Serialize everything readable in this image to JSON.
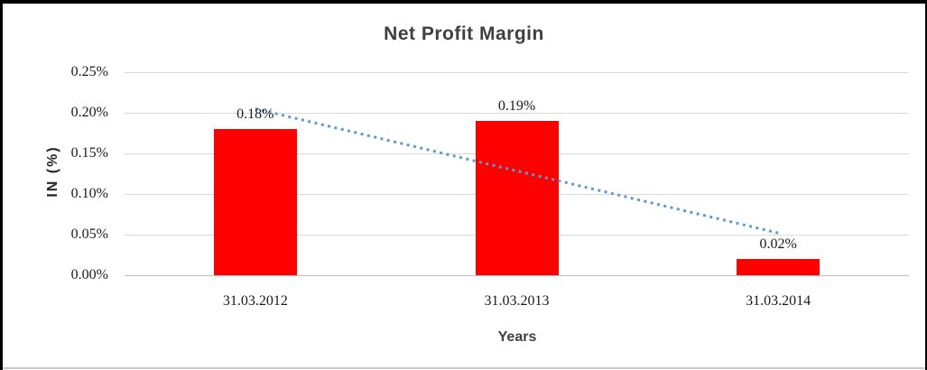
{
  "chart_data": {
    "type": "bar",
    "title": "Net Profit Margin",
    "xlabel": "Years",
    "ylabel": "IN (%)",
    "categories": [
      "31.03.2012",
      "31.03.2013",
      "31.03.2014"
    ],
    "values": [
      0.18,
      0.19,
      0.02
    ],
    "data_labels": [
      "0.18%",
      "0.19%",
      "0.02%"
    ],
    "y_ticks": [
      "0.25%",
      "0.20%",
      "0.15%",
      "0.10%",
      "0.05%",
      "0.00%"
    ],
    "ylim": [
      0,
      0.25
    ],
    "grid": "horizontal-only",
    "legend": "none",
    "bar_color": "#ff0000",
    "gridline_color": "#d9d9d9",
    "axis_line_color": "#bfbfbf",
    "title_color": "#3f3f3f",
    "tick_label_color": "#1a1a1a",
    "trendline": {
      "type": "linear",
      "style": "dotted",
      "color": "#5b9bd5",
      "start_value": 0.205,
      "end_value": 0.052
    }
  }
}
